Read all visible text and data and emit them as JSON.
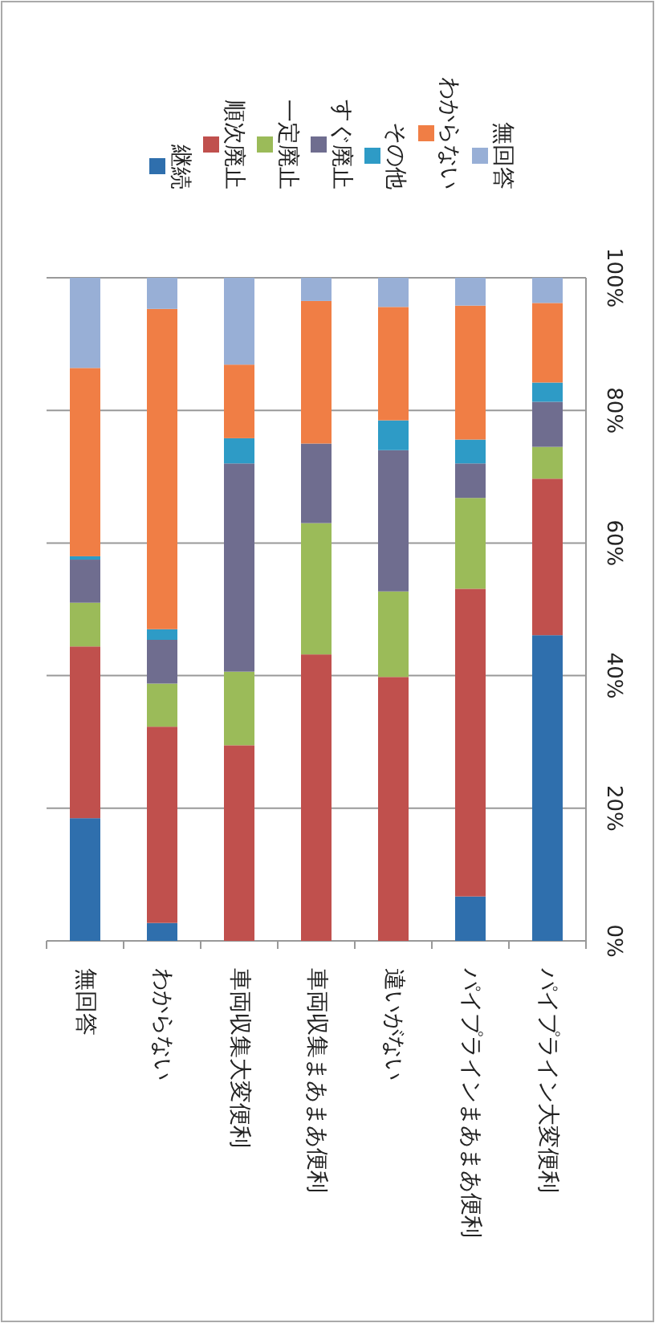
{
  "chart_data": {
    "type": "bar",
    "stacked": true,
    "categories": [
      "無回答",
      "わからない",
      "車両収集大変便利",
      "車両収集まあまあ便利",
      "違いがない",
      "パイプラインまあまあ便利",
      "パイプライン大変便利"
    ],
    "series": [
      {
        "name": "継続",
        "color": "#2f6fad",
        "values": [
          18.5,
          2.7,
          0,
          0,
          0,
          6.7,
          46.1
        ]
      },
      {
        "name": "順次廃止",
        "color": "#c0504d",
        "values": [
          25.9,
          29.6,
          29.5,
          43.2,
          39.8,
          46.4,
          23.6
        ]
      },
      {
        "name": "一定廃止",
        "color": "#9bbb59",
        "values": [
          6.6,
          6.5,
          11.1,
          19.8,
          12.9,
          13.7,
          4.8
        ]
      },
      {
        "name": "すぐ廃止",
        "color": "#6f6d8f",
        "values": [
          6.5,
          6.6,
          31.4,
          12,
          21.3,
          5.2,
          6.8
        ]
      },
      {
        "name": "その他",
        "color": "#2e9bc6",
        "values": [
          0.5,
          1.6,
          3.8,
          0,
          4.5,
          3.6,
          2.9
        ]
      },
      {
        "name": "わからない",
        "color": "#f07e45",
        "values": [
          28.4,
          48.3,
          11.1,
          21.5,
          17.1,
          20.2,
          12
        ]
      },
      {
        "name": "無回答",
        "color": "#98afd6",
        "values": [
          13.6,
          4.7,
          13.1,
          3.5,
          4.4,
          4.2,
          3.8
        ]
      }
    ],
    "ylim": [
      0,
      100
    ],
    "yticks": [
      {
        "value": 0,
        "label": "0%"
      },
      {
        "value": 20,
        "label": "20%"
      },
      {
        "value": 40,
        "label": "40%"
      },
      {
        "value": 60,
        "label": "60%"
      },
      {
        "value": 80,
        "label": "80%"
      },
      {
        "value": 100,
        "label": "100%"
      }
    ],
    "grid": "y",
    "legend": "top"
  }
}
